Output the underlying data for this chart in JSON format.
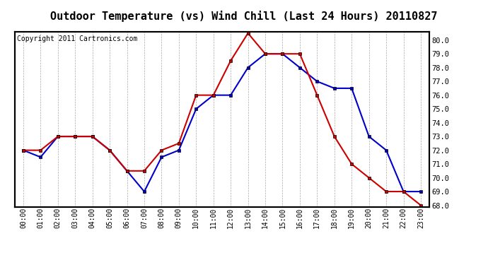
{
  "title": "Outdoor Temperature (vs) Wind Chill (Last 24 Hours) 20110827",
  "copyright": "Copyright 2011 Cartronics.com",
  "hours": [
    "00:00",
    "01:00",
    "02:00",
    "03:00",
    "04:00",
    "05:00",
    "06:00",
    "07:00",
    "08:00",
    "09:00",
    "10:00",
    "11:00",
    "12:00",
    "13:00",
    "14:00",
    "15:00",
    "16:00",
    "17:00",
    "18:00",
    "19:00",
    "20:00",
    "21:00",
    "22:00",
    "23:00"
  ],
  "temp": [
    72.0,
    72.0,
    73.0,
    73.0,
    73.0,
    72.0,
    70.5,
    70.5,
    72.0,
    72.5,
    76.0,
    76.0,
    78.5,
    80.5,
    79.0,
    79.0,
    79.0,
    76.0,
    73.0,
    71.0,
    70.0,
    69.0,
    69.0,
    68.0
  ],
  "wind_chill": [
    72.0,
    71.5,
    73.0,
    73.0,
    73.0,
    72.0,
    70.5,
    69.0,
    71.5,
    72.0,
    75.0,
    76.0,
    76.0,
    78.0,
    79.0,
    79.0,
    78.0,
    77.0,
    76.5,
    76.5,
    73.0,
    72.0,
    69.0,
    69.0
  ],
  "temp_color": "#cc0000",
  "wind_chill_color": "#0000cc",
  "ylim_min": 68.0,
  "ylim_max": 80.5,
  "yticks": [
    68.0,
    69.0,
    70.0,
    71.0,
    72.0,
    73.0,
    74.0,
    75.0,
    76.0,
    77.0,
    78.0,
    79.0,
    80.0
  ],
  "bg_color": "#ffffff",
  "grid_color": "#aaaaaa",
  "title_fontsize": 11,
  "copyright_fontsize": 7,
  "marker": "s",
  "marker_size": 3,
  "linewidth": 1.5
}
